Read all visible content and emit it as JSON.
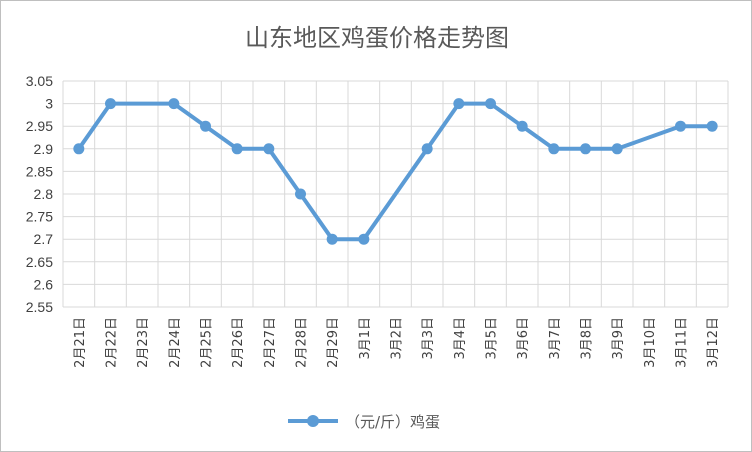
{
  "chart_data": {
    "type": "line",
    "title": "山东地区鸡蛋价格走势图",
    "xlabel": "",
    "ylabel": "",
    "ylim": [
      2.55,
      3.05
    ],
    "yticks": [
      "3.05",
      "3",
      "2.95",
      "2.9",
      "2.85",
      "2.8",
      "2.75",
      "2.7",
      "2.65",
      "2.6",
      "2.55"
    ],
    "grid": true,
    "legend_position": "bottom",
    "categories": [
      "2月21日",
      "2月22日",
      "2月23日",
      "2月24日",
      "2月25日",
      "2月26日",
      "2月27日",
      "2月28日",
      "2月29日",
      "3月1日",
      "3月2日",
      "3月3日",
      "3月4日",
      "3月5日",
      "3月6日",
      "3月7日",
      "3月8日",
      "3月9日",
      "3月10日",
      "3月11日",
      "3月12日"
    ],
    "series": [
      {
        "name": "（元/斤）鸡蛋",
        "color": "#5b9bd5",
        "values": [
          2.9,
          3.0,
          null,
          3.0,
          2.95,
          2.9,
          2.9,
          2.8,
          2.7,
          2.7,
          null,
          2.9,
          3.0,
          3.0,
          2.95,
          2.9,
          2.9,
          2.9,
          null,
          2.95,
          2.95
        ]
      }
    ],
    "colors": {
      "line": "#5b9bd5",
      "grid": "#d9d9d9",
      "text": "#404040",
      "title": "#595959"
    }
  }
}
